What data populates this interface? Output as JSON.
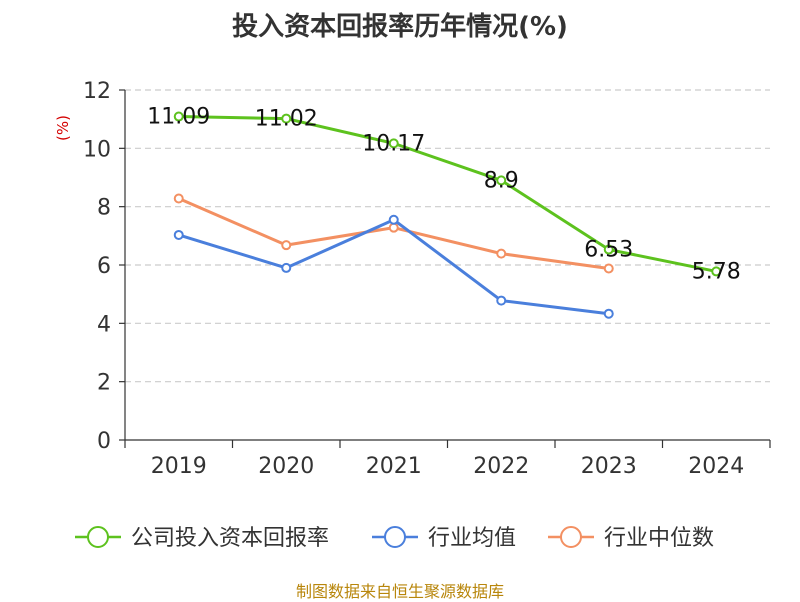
{
  "title": "投入资本回报率历年情况(%)",
  "source": "制图数据来自恒生聚源数据库",
  "chart_data": {
    "type": "line",
    "title": "投入资本回报率历年情况(%)",
    "ylabel": "(%)",
    "xlabel": "",
    "ylim": [
      0,
      12
    ],
    "yticks": [
      0,
      2,
      4,
      6,
      8,
      10,
      12
    ],
    "categories": [
      "2019",
      "2020",
      "2021",
      "2022",
      "2023",
      "2024"
    ],
    "grid": true,
    "legend_position": "bottom",
    "series": [
      {
        "name": "公司投入资本回报率",
        "color": "#5dc21e",
        "values": [
          11.09,
          11.02,
          10.17,
          8.9,
          6.53,
          5.78
        ],
        "labels": [
          "11.09",
          "11.02",
          "10.17",
          "8.9",
          "6.53",
          "5.78"
        ],
        "show_labels": true
      },
      {
        "name": "行业均值",
        "color": "#4a7fdc",
        "values": [
          7.03,
          5.9,
          7.55,
          4.78,
          4.33,
          null
        ],
        "show_labels": false
      },
      {
        "name": "行业中位数",
        "color": "#f39062",
        "values": [
          8.28,
          6.68,
          7.28,
          6.39,
          5.88,
          null
        ],
        "show_labels": false
      }
    ]
  }
}
